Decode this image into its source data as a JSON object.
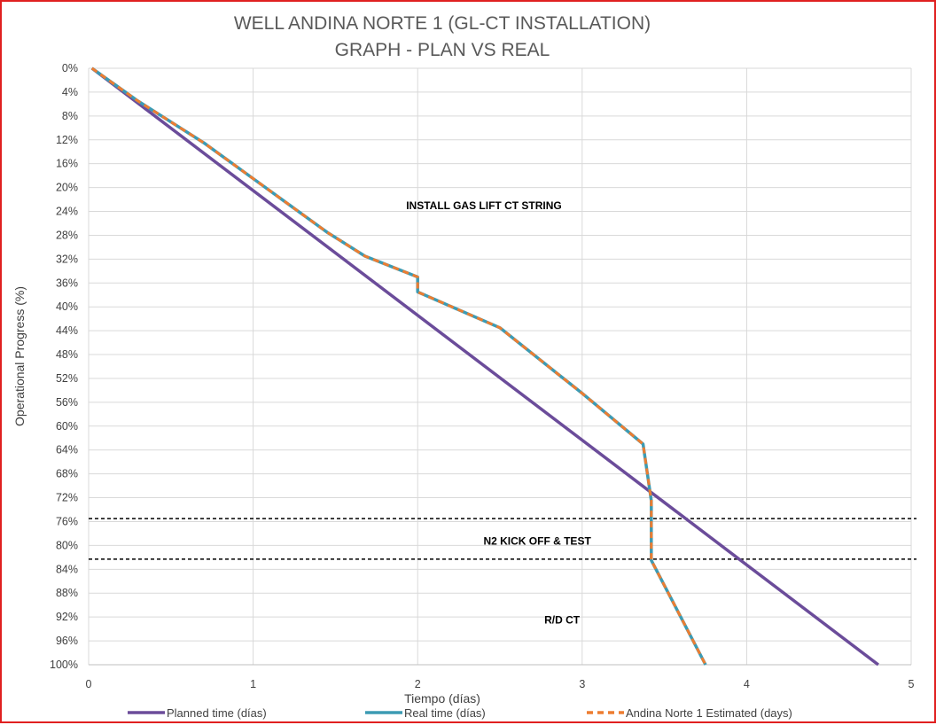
{
  "chart_data": {
    "type": "line",
    "title": [
      "WELL ANDINA NORTE 1 (GL-CT INSTALLATION)",
      "GRAPH  - PLAN VS REAL"
    ],
    "xlabel": "Tiempo (días)",
    "ylabel": "Operational Progress (%)",
    "xlim": [
      0,
      5
    ],
    "ylim": [
      0,
      100
    ],
    "y_inverted": true,
    "x_ticks": [
      0,
      1,
      2,
      3,
      4,
      5
    ],
    "y_ticks": [
      0,
      4,
      8,
      12,
      16,
      20,
      24,
      28,
      32,
      36,
      40,
      44,
      48,
      52,
      56,
      60,
      64,
      68,
      72,
      76,
      80,
      84,
      88,
      92,
      96,
      100
    ],
    "y_tick_suffix": "%",
    "grid": true,
    "legend_position": "bottom",
    "series": [
      {
        "name": "Planned time (días)",
        "color": "#6b4c9a",
        "style": "solid",
        "x": [
          0.02,
          4.8
        ],
        "y": [
          0,
          100
        ]
      },
      {
        "name": "Real time (días)",
        "color": "#3c9bb3",
        "style": "solid",
        "x": [
          0.02,
          0.3,
          0.7,
          1.0,
          1.2,
          1.45,
          1.68,
          2.0,
          2.0,
          2.5,
          3.0,
          3.37,
          3.42,
          3.42,
          3.75
        ],
        "y": [
          0,
          5.5,
          12.5,
          18.5,
          22.5,
          27.5,
          31.5,
          35,
          37.5,
          43.5,
          54.5,
          63,
          72.5,
          82.5,
          100
        ]
      },
      {
        "name": "Andina Norte 1 Estimated (days)",
        "color": "#ed7d31",
        "style": "dashed",
        "x": [
          0.02,
          0.3,
          0.7,
          1.0,
          1.2,
          1.45,
          1.68,
          2.0,
          2.0,
          2.5,
          3.0,
          3.37,
          3.42,
          3.42,
          3.75
        ],
        "y": [
          0,
          5.5,
          12.5,
          18.5,
          22.5,
          27.5,
          31.5,
          35,
          37.5,
          43.5,
          54.5,
          63,
          72.5,
          82.5,
          100
        ]
      }
    ],
    "reference_lines": [
      {
        "y": 75.5,
        "color": "#000000",
        "style": "dashed"
      },
      {
        "y": 82.3,
        "color": "#000000",
        "style": "dashed"
      }
    ],
    "annotations": [
      {
        "text": "INSTALL GAS LIFT CT STRING",
        "x": 1.93,
        "y": 23
      },
      {
        "text": "N2 KICK OFF & TEST",
        "x": 2.4,
        "y": 79.3
      },
      {
        "text": "R/D CT",
        "x": 2.77,
        "y": 92.5
      }
    ]
  }
}
